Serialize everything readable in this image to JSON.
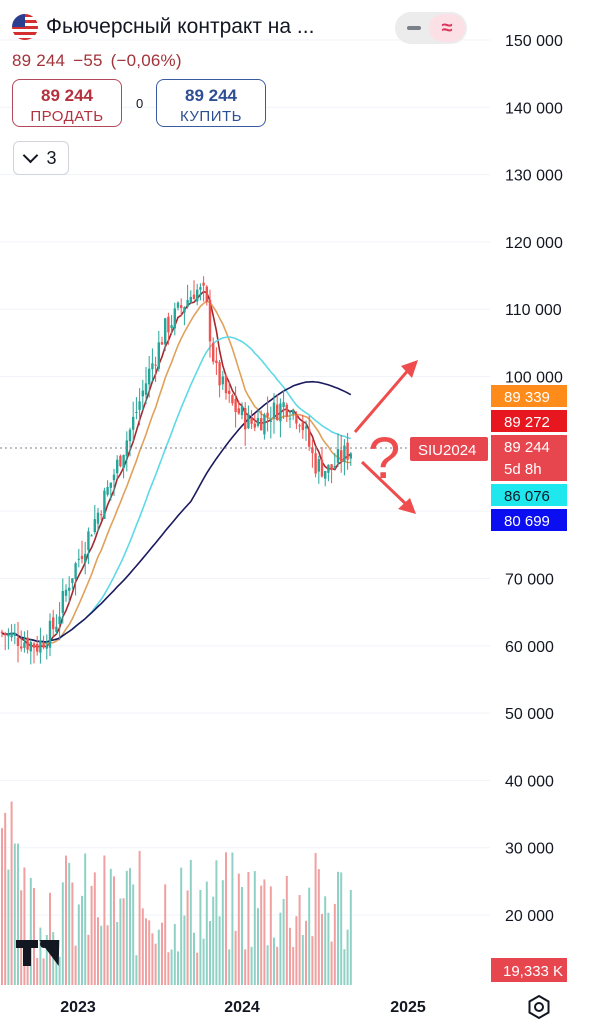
{
  "header": {
    "title": "Фьючерсный контракт на ...",
    "price": "89 244",
    "change": "−55",
    "change_pct": "(−0,06%)",
    "flag_icon": "us-flag-icon",
    "mode_icon": "approx-icon"
  },
  "trade": {
    "sell_price": "89 244",
    "sell_label": "ПРОДАТЬ",
    "spread": "0",
    "buy_price": "89 244",
    "buy_label": "КУПИТЬ"
  },
  "indicators_toggle": {
    "count": "3"
  },
  "annotation": {
    "question_mark": "?"
  },
  "chart_data": {
    "type": "candlestick",
    "symbol_label": "SIU2024",
    "y_ticks": [
      150000,
      140000,
      130000,
      120000,
      110000,
      100000,
      90000,
      80000,
      70000,
      60000,
      50000,
      40000,
      30000,
      20000
    ],
    "y_tick_labels": [
      "150 000",
      "140 000",
      "130 000",
      "120 000",
      "110 000",
      "100 000",
      "",
      "",
      "70 000",
      "60 000",
      "50 000",
      "40 000",
      "30 000",
      "20 000"
    ],
    "x_labels": [
      {
        "label": "2023",
        "date": "2023-01-01"
      },
      {
        "label": "2024",
        "date": "2024-01-01"
      },
      {
        "label": "2025",
        "date": "2025-01-01"
      }
    ],
    "price_tags": [
      {
        "value": "89 339",
        "color": "#ff8c1a"
      },
      {
        "value": "89 272",
        "color": "#e8161f"
      },
      {
        "value": "89 244",
        "sub": "5d 8h",
        "color": "#e8464f"
      },
      {
        "value": "86 076",
        "color": "#1ee8ee"
      },
      {
        "value": "80 699",
        "color": "#0b0ef0"
      }
    ],
    "current_price": 89244,
    "volume_tag": {
      "value": "19,333 K",
      "color": "#e8464f"
    },
    "ma_colors": [
      "#a2292f",
      "#e0a15a",
      "#5fd9e6",
      "#1c1a5e"
    ],
    "candle_colors": {
      "up": "#26a69a",
      "down": "#ef5350"
    }
  }
}
